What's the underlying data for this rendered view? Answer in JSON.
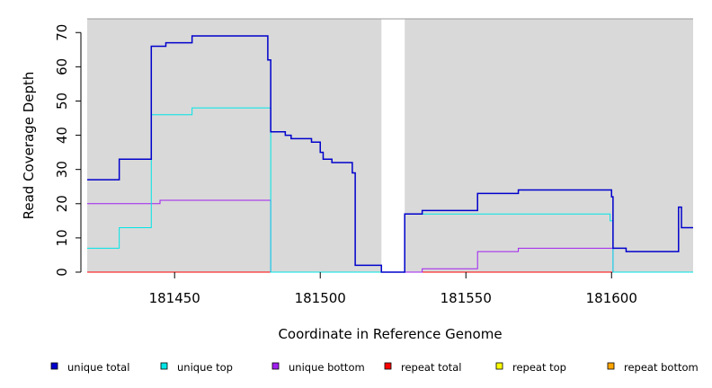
{
  "chart_data": {
    "type": "line",
    "xlabel": "Coordinate in Reference Genome",
    "ylabel": "Read Coverage Depth",
    "xlim": [
      181420,
      181628
    ],
    "ylim": [
      0,
      74
    ],
    "x_ticks": [
      181450,
      181500,
      181550,
      181600
    ],
    "y_ticks": [
      0,
      10,
      20,
      30,
      40,
      50,
      60,
      70
    ],
    "background": "#d9d9d9",
    "gap_regions": [
      [
        181521,
        181529
      ]
    ],
    "legend_position": "bottom",
    "series": [
      {
        "name": "unique total",
        "color": "#0000cc",
        "steps": [
          [
            181420,
            27
          ],
          [
            181431,
            33
          ],
          [
            181442,
            66
          ],
          [
            181447,
            67
          ],
          [
            181456,
            69
          ],
          [
            181482,
            62
          ],
          [
            181483,
            41
          ],
          [
            181488,
            40
          ],
          [
            181490,
            39
          ],
          [
            181497,
            38
          ],
          [
            181500,
            35
          ],
          [
            181501,
            33
          ],
          [
            181504,
            32
          ],
          [
            181511,
            29
          ],
          [
            181512,
            2
          ],
          [
            181521,
            0
          ],
          [
            181529,
            17
          ],
          [
            181535,
            18
          ],
          [
            181554,
            23
          ],
          [
            181568,
            24
          ],
          [
            181600,
            22
          ],
          [
            181600.5,
            7
          ],
          [
            181605,
            6
          ],
          [
            181623,
            19
          ],
          [
            181624,
            13
          ],
          [
            181628,
            13
          ]
        ]
      },
      {
        "name": "unique top",
        "color": "#00e5e5",
        "steps": [
          [
            181420,
            7
          ],
          [
            181431,
            13
          ],
          [
            181442,
            46
          ],
          [
            181456,
            48
          ],
          [
            181483,
            0
          ],
          [
            181529,
            17
          ],
          [
            181599.5,
            15
          ],
          [
            181600.5,
            0
          ],
          [
            181628,
            0
          ]
        ]
      },
      {
        "name": "unique bottom",
        "color": "#a020f0",
        "steps": [
          [
            181420,
            20
          ],
          [
            181445,
            21
          ],
          [
            181483,
            0
          ],
          [
            181535,
            1
          ],
          [
            181554,
            6
          ],
          [
            181568,
            7
          ],
          [
            181600.5,
            0
          ],
          [
            181628,
            0
          ]
        ]
      },
      {
        "name": "repeat total",
        "color": "#ff0000",
        "steps": [
          [
            181420,
            0
          ],
          [
            181628,
            0
          ]
        ]
      },
      {
        "name": "repeat top",
        "color": "#ffff00",
        "steps": [
          [
            181420,
            0
          ],
          [
            181628,
            0
          ]
        ]
      },
      {
        "name": "repeat bottom",
        "color": "#ffa500",
        "steps": [
          [
            181420,
            0
          ],
          [
            181628,
            0
          ]
        ]
      }
    ]
  }
}
